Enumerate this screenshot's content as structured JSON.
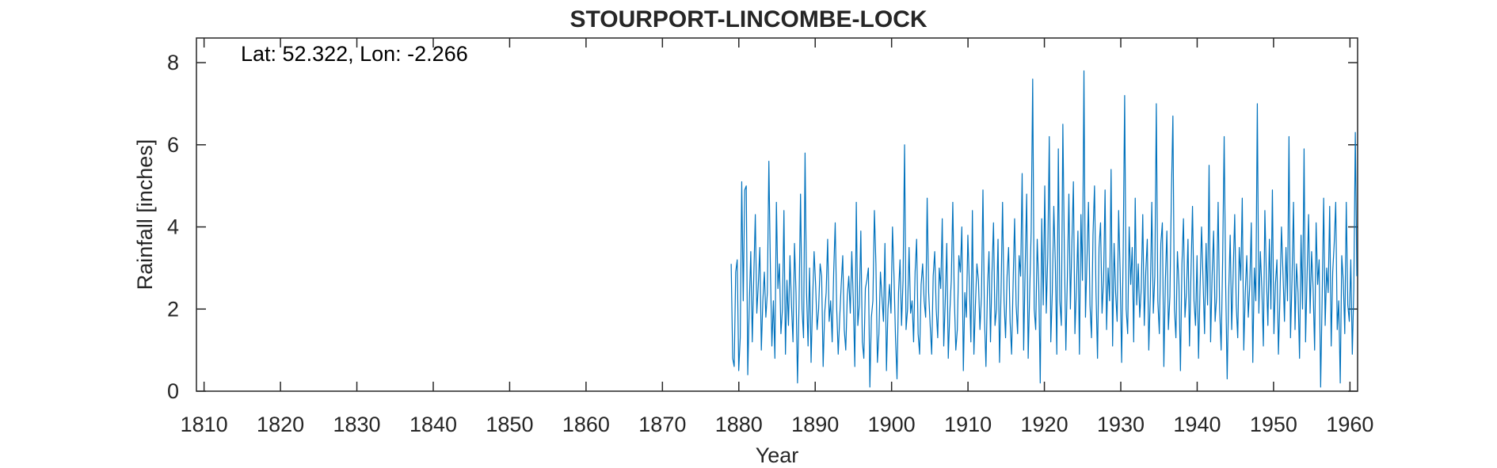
{
  "chart_data": {
    "type": "line",
    "title": "STOURPORT-LINCOMBE-LOCK",
    "annotation": "Lat: 52.322, Lon: -2.266",
    "xlabel": "Year",
    "ylabel": "Rainfall [inches]",
    "xlim": [
      1809,
      1961
    ],
    "ylim": [
      0,
      8.6
    ],
    "xticks": [
      1810,
      1820,
      1830,
      1840,
      1850,
      1860,
      1870,
      1880,
      1890,
      1900,
      1910,
      1920,
      1930,
      1940,
      1950,
      1960
    ],
    "yticks": [
      0,
      2,
      4,
      6,
      8
    ],
    "grid": false,
    "box": true,
    "series_color": "#0072BD",
    "series": [
      {
        "x_start": 1879.0,
        "x_end": 1960.9,
        "samples_per_year": 12,
        "values": [
          3.1,
          0.8,
          0.6,
          2.9,
          3.2,
          0.5,
          1.3,
          5.1,
          2.2,
          4.9,
          5.0,
          0.4,
          2.1,
          3.4,
          1.2,
          2.8,
          4.3,
          1.9,
          2.6,
          3.5,
          1.0,
          2.2,
          2.9,
          1.8,
          2.4,
          5.6,
          3.0,
          1.1,
          2.2,
          0.8,
          4.6,
          2.5,
          3.1,
          1.4,
          2.0,
          4.4,
          0.9,
          2.7,
          1.6,
          3.3,
          2.1,
          1.2,
          3.6,
          2.4,
          0.2,
          2.1,
          4.8,
          2.0,
          1.3,
          5.8,
          2.4,
          1.1,
          3.0,
          0.7,
          2.2,
          3.4,
          2.6,
          1.5,
          2.0,
          3.1,
          2.8,
          0.6,
          1.9,
          2.4,
          3.7,
          1.7,
          2.2,
          1.2,
          2.9,
          4.1,
          2.0,
          0.9,
          1.8,
          2.6,
          3.3,
          1.5,
          1.0,
          2.3,
          2.8,
          1.9,
          3.4,
          2.2,
          0.6,
          4.6,
          1.6,
          2.1,
          3.9,
          1.2,
          0.8,
          2.5,
          2.7,
          3.0,
          0.1,
          1.8,
          2.2,
          4.4,
          3.1,
          0.7,
          1.4,
          2.9,
          2.3,
          1.7,
          3.6,
          0.5,
          2.0,
          2.6,
          1.9,
          4.0,
          2.8,
          1.3,
          0.3,
          2.4,
          3.2,
          1.6,
          2.7,
          6.0,
          1.5,
          2.0,
          3.5,
          1.9,
          2.2,
          1.2,
          2.9,
          3.7,
          1.4,
          0.9,
          2.6,
          3.1,
          2.2,
          1.8,
          4.7,
          2.4,
          1.6,
          0.9,
          2.8,
          3.4,
          2.0,
          1.3,
          3.0,
          2.5,
          4.2,
          1.1,
          2.2,
          3.6,
          0.8,
          1.9,
          2.7,
          4.6,
          2.3,
          1.0,
          1.5,
          3.3,
          2.9,
          4.0,
          0.5,
          2.4,
          1.8,
          3.8,
          2.6,
          1.2,
          4.4,
          0.9,
          2.1,
          3.1,
          2.7,
          1.5,
          2.3,
          4.9,
          1.8,
          0.6,
          2.5,
          3.4,
          1.2,
          2.9,
          4.1,
          1.6,
          2.0,
          3.7,
          0.7,
          2.4,
          4.6,
          2.2,
          1.3,
          2.8,
          3.5,
          1.7,
          0.9,
          2.6,
          4.2,
          2.1,
          1.4,
          3.3,
          2.8,
          5.3,
          1.0,
          3.0,
          4.8,
          0.8,
          2.4,
          3.9,
          7.6,
          2.0,
          1.5,
          3.7,
          2.6,
          0.2,
          4.2,
          2.1,
          5.0,
          1.9,
          3.3,
          6.2,
          1.2,
          2.4,
          4.5,
          3.1,
          0.9,
          5.9,
          2.2,
          1.6,
          6.5,
          3.4,
          1.0,
          2.8,
          4.8,
          2.0,
          3.6,
          5.1,
          1.4,
          2.5,
          3.9,
          0.9,
          4.3,
          2.7,
          7.8,
          1.8,
          3.2,
          4.6,
          2.1,
          1.3,
          3.8,
          5.0,
          2.4,
          0.8,
          3.5,
          4.1,
          1.9,
          2.7,
          4.9,
          1.5,
          3.0,
          2.2,
          5.4,
          1.1,
          3.6,
          2.4,
          1.7,
          4.4,
          2.9,
          0.7,
          3.3,
          7.2,
          2.0,
          1.4,
          4.0,
          2.6,
          3.5,
          1.2,
          4.7,
          2.1,
          3.1,
          1.8,
          2.5,
          4.3,
          1.6,
          2.9,
          3.7,
          1.0,
          2.3,
          4.6,
          1.9,
          2.8,
          7.0,
          2.2,
          1.4,
          3.6,
          4.1,
          0.6,
          2.7,
          3.9,
          1.5,
          2.3,
          4.8,
          6.7,
          2.0,
          1.3,
          3.4,
          2.6,
          0.5,
          3.1,
          4.2,
          1.8,
          2.4,
          3.7,
          1.1,
          2.9,
          4.5,
          2.2,
          1.6,
          3.3,
          0.8,
          2.5,
          4.0,
          2.7,
          1.4,
          3.6,
          2.1,
          5.5,
          1.2,
          2.8,
          3.9,
          1.7,
          2.3,
          4.6,
          2.0,
          1.0,
          3.2,
          6.2,
          2.6,
          0.3,
          2.4,
          3.8,
          1.5,
          2.9,
          4.3,
          2.1,
          1.3,
          3.5,
          2.7,
          4.7,
          1.0,
          2.4,
          3.3,
          1.8,
          2.6,
          4.1,
          0.7,
          3.0,
          2.2,
          7.0,
          1.9,
          3.4,
          2.5,
          1.1,
          4.4,
          2.8,
          1.6,
          3.7,
          2.0,
          4.9,
          1.4,
          2.6,
          3.2,
          0.9,
          2.3,
          4.0,
          2.9,
          1.7,
          3.5,
          2.2,
          6.2,
          1.3,
          2.7,
          4.6,
          1.5,
          3.1,
          2.4,
          0.8,
          3.8,
          2.0,
          5.9,
          1.2,
          2.8,
          4.3,
          1.9,
          3.4,
          2.5,
          1.0,
          4.1,
          2.6,
          3.2,
          0.1,
          2.3,
          4.7,
          1.6,
          3.0,
          2.4,
          4.5,
          1.1,
          2.9,
          3.6,
          4.6,
          1.5,
          2.2,
          0.2,
          3.3,
          2.7,
          1.4,
          4.6,
          2.1,
          1.7,
          3.2,
          0.9,
          2.5,
          6.3,
          2.8
        ]
      }
    ]
  }
}
